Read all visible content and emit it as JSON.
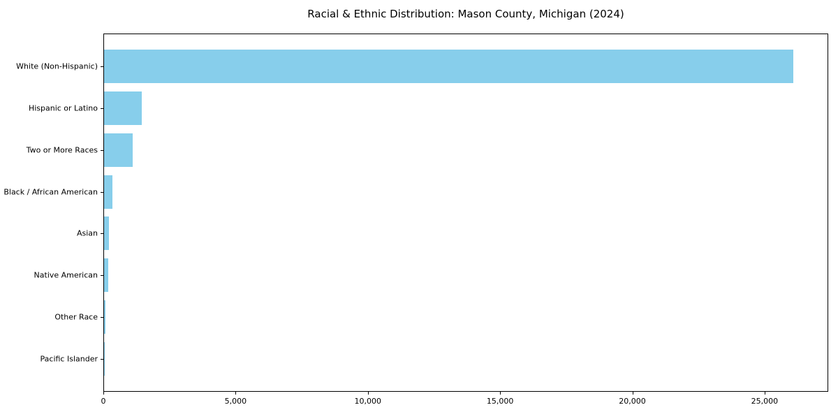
{
  "chart_data": {
    "type": "bar",
    "orientation": "horizontal",
    "title": "Racial & Ethnic Distribution: Mason County, Michigan (2024)",
    "categories": [
      "White (Non-Hispanic)",
      "Hispanic or Latino",
      "Two or More Races",
      "Black / African American",
      "Asian",
      "Native American",
      "Other Race",
      "Pacific Islander"
    ],
    "values": [
      26100,
      1420,
      1090,
      320,
      185,
      160,
      65,
      10
    ],
    "xlabel": "",
    "ylabel": "",
    "xlim": [
      0,
      27405
    ],
    "x_ticks": [
      0,
      5000,
      10000,
      15000,
      20000,
      25000
    ],
    "x_tick_labels": [
      "0",
      "5,000",
      "10,000",
      "15,000",
      "20,000",
      "25,000"
    ],
    "bar_color": "#87CEEB",
    "axis_color": "#000000",
    "background_color": "#ffffff",
    "grid": false,
    "legend": false
  }
}
